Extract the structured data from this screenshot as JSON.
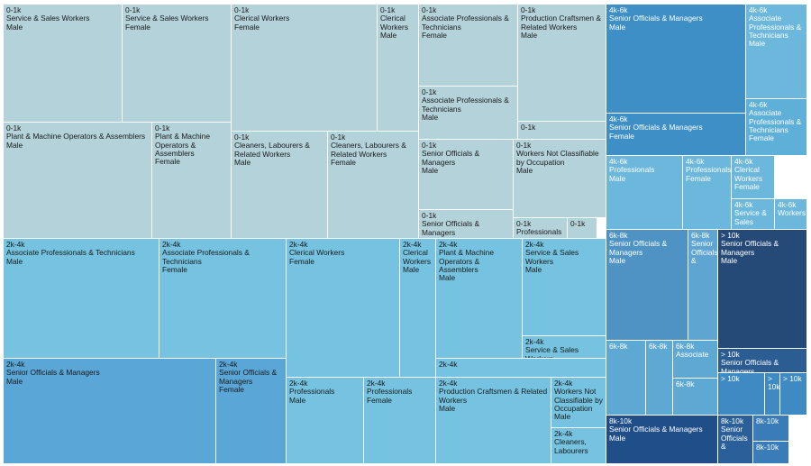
{
  "chart_data": {
    "type": "treemap",
    "title": "",
    "hierarchy": [
      "income_band",
      "occupation",
      "gender"
    ],
    "colors": {
      "0-1k": "#b4d2da",
      "2k-4k": "#75c3e0",
      "4k-6k": "#6cb7dc",
      "6k-8k": "#5ea9d4",
      "8k-10k": "#1f4e88",
      "> 10k": "#254a78"
    },
    "cells": [
      {
        "band": "0-1k",
        "occupation": "Service & Sales Workers",
        "gender": "Male",
        "value": 17.3
      },
      {
        "band": "0-1k",
        "occupation": "Service & Sales Workers",
        "gender": "Female",
        "value": 16.0
      },
      {
        "band": "0-1k",
        "occupation": "Clerical Workers",
        "gender": "Female",
        "value": 22.9
      },
      {
        "band": "0-1k",
        "occupation": "Clerical Workers",
        "gender": "Male",
        "value": 6.8
      },
      {
        "band": "0-1k",
        "occupation": "Associate Professionals & Technicians",
        "gender": "Female",
        "value": 9.9
      },
      {
        "band": "0-1k",
        "occupation": "Production Craftsmen & Related Workers",
        "gender": "Male",
        "value": 9.4
      },
      {
        "band": "0-1k",
        "occupation": "Associate Professionals & Technicians",
        "gender": "Male",
        "value": 6.2
      },
      {
        "band": "0-1k",
        "occupation": "",
        "gender": "",
        "value": 1.0
      },
      {
        "band": "0-1k",
        "occupation": "Plant & Machine Operators & Assemblers",
        "gender": "Male",
        "value": 21.2
      },
      {
        "band": "0-1k",
        "occupation": "Plant & Machine Operators & Assemblers",
        "gender": "Female",
        "value": 11.4
      },
      {
        "band": "0-1k",
        "occupation": "Cleaners, Labourers & Related Workers",
        "gender": "Male",
        "value": 13.1
      },
      {
        "band": "0-1k",
        "occupation": "Cleaners, Labourers & Related Workers",
        "gender": "Female",
        "value": 12.3
      },
      {
        "band": "0-1k",
        "occupation": "Senior Officials & Managers",
        "gender": "Male",
        "value": 8.0
      },
      {
        "band": "0-1k",
        "occupation": "Senior Officials & Managers",
        "gender": "Female",
        "value": 3.2
      },
      {
        "band": "0-1k",
        "occupation": "Workers Not Classifiable by Occupation",
        "gender": "Male",
        "value": 5.6
      },
      {
        "band": "0-1k",
        "occupation": "Professionals",
        "gender": "",
        "value": 1.5
      },
      {
        "band": "0-1k",
        "occupation": "",
        "gender": "",
        "value": 0.8
      },
      {
        "band": "2k-4k",
        "occupation": "Associate Professionals & Technicians",
        "gender": "Male",
        "value": 22.7
      },
      {
        "band": "2k-4k",
        "occupation": "Associate Professionals & Technicians",
        "gender": "Female",
        "value": 18.2
      },
      {
        "band": "2k-4k",
        "occupation": "Clerical Workers",
        "gender": "Female",
        "value": 19.3
      },
      {
        "band": "2k-4k",
        "occupation": "Clerical Workers",
        "gender": "Male",
        "value": 5.7
      },
      {
        "band": "2k-4k",
        "occupation": "Plant & Machine Operators & Assemblers",
        "gender": "Male",
        "value": 13.1
      },
      {
        "band": "2k-4k",
        "occupation": "Service & Sales Workers",
        "gender": "Male",
        "value": 11.9
      },
      {
        "band": "2k-4k",
        "occupation": "Service & Sales Workers",
        "gender": "Female",
        "value": 3.8
      },
      {
        "band": "2k-4k",
        "occupation": "",
        "gender": "",
        "value": 2.1
      },
      {
        "band": "2k-4k",
        "occupation": "Senior Officials & Managers",
        "gender": "Male",
        "value": 18.5
      },
      {
        "band": "2k-4k",
        "occupation": "Senior Officials & Managers",
        "gender": "Female",
        "value": 6.1
      },
      {
        "band": "2k-4k",
        "occupation": "Professionals",
        "gender": "Male",
        "value": 6.4
      },
      {
        "band": "2k-4k",
        "occupation": "Professionals",
        "gender": "Female",
        "value": 5.9
      },
      {
        "band": "2k-4k",
        "occupation": "Production Craftsmen & Related Workers",
        "gender": "Male",
        "value": 9.4
      },
      {
        "band": "2k-4k",
        "occupation": "Workers Not Classifiable by Occupation",
        "gender": "Male",
        "value": 2.7
      },
      {
        "band": "2k-4k",
        "occupation": "Cleaners, Labourers",
        "gender": "",
        "value": 1.9
      },
      {
        "band": "4k-6k",
        "occupation": "Senior Officials & Managers",
        "gender": "Male",
        "value": 16.3
      },
      {
        "band": "4k-6k",
        "occupation": "Associate Professionals & Technicians",
        "gender": "Male",
        "value": 6.7
      },
      {
        "band": "4k-6k",
        "occupation": "Senior Officials & Managers",
        "gender": "Female",
        "value": 7.1
      },
      {
        "band": "4k-6k",
        "occupation": "Associate Professionals & Technicians",
        "gender": "Female",
        "value": 3.5
      },
      {
        "band": "4k-6k",
        "occupation": "Professionals",
        "gender": "Male",
        "value": 5.7
      },
      {
        "band": "4k-6k",
        "occupation": "Professionals",
        "gender": "Female",
        "value": 3.8
      },
      {
        "band": "4k-6k",
        "occupation": "Clerical Workers",
        "gender": "Female",
        "value": 2.6
      },
      {
        "band": "4k-6k",
        "occupation": "Service & Sales",
        "gender": "",
        "value": 1.6
      },
      {
        "band": "4k-6k",
        "occupation": "Workers",
        "gender": "",
        "value": 1.1
      },
      {
        "band": "6k-8k",
        "occupation": "Senior Officials & Managers",
        "gender": "Male",
        "value": 7.6
      },
      {
        "band": "6k-8k",
        "occupation": "Senior Officials &",
        "gender": "",
        "value": 2.8
      },
      {
        "band": "6k-8k",
        "occupation": "",
        "gender": "",
        "value": 2.0
      },
      {
        "band": "6k-8k",
        "occupation": "",
        "gender": "",
        "value": 1.4
      },
      {
        "band": "6k-8k",
        "occupation": "Associate",
        "gender": "",
        "value": 1.6
      },
      {
        "band": "6k-8k",
        "occupation": "",
        "gender": "",
        "value": 1.5
      },
      {
        "band": "> 10k",
        "occupation": "Senior Officials & Managers",
        "gender": "Male",
        "value": 11.8
      },
      {
        "band": "> 10k",
        "occupation": "Senior Officials & Managers",
        "gender": "",
        "value": 2.4
      },
      {
        "band": "> 10k",
        "occupation": "",
        "gender": "",
        "value": 2.1
      },
      {
        "band": "> 10k",
        "occupation": "",
        "gender": "",
        "value": 0.6
      },
      {
        "band": "> 10k",
        "occupation": "",
        "gender": "",
        "value": 1.2
      },
      {
        "band": "8k-10k",
        "occupation": "Senior Officials & Managers",
        "gender": "Male",
        "value": 6.0
      },
      {
        "band": "8k-10k",
        "occupation": "Senior Officials &",
        "gender": "",
        "value": 1.8
      },
      {
        "band": "8k-10k",
        "occupation": "",
        "gender": "",
        "value": 1.0
      },
      {
        "band": "8k-10k",
        "occupation": "",
        "gender": "",
        "value": 0.7
      }
    ]
  }
}
